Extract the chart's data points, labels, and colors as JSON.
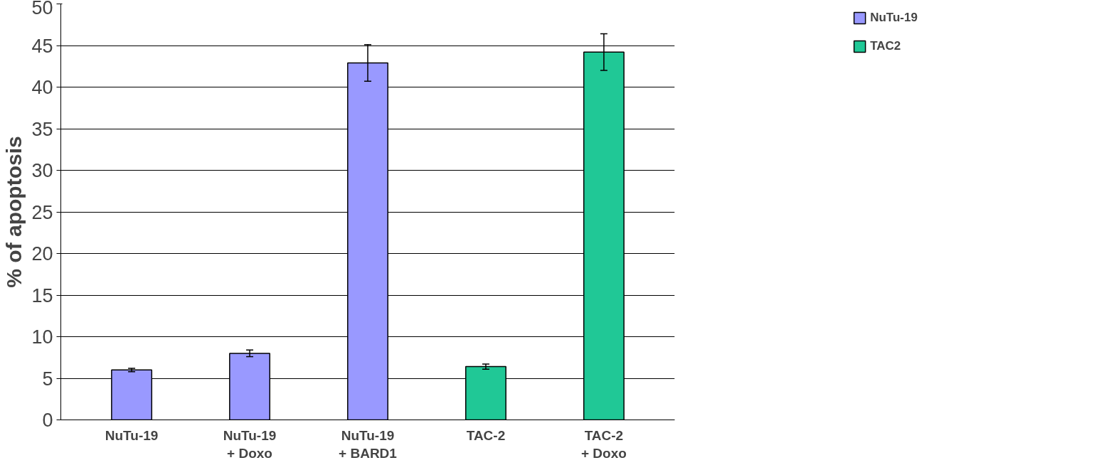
{
  "chart_data": {
    "type": "bar",
    "ylabel": "% of apoptosis",
    "categories": [
      "NuTu-19",
      "NuTu-19\n+ Doxo",
      "NuTu-19\n+ BARD1",
      "TAC-2",
      "TAC-2\n+ Doxo"
    ],
    "series": [
      {
        "name": "NuTu-19",
        "color": "#9999ff",
        "values": [
          6.0,
          8.0,
          42.9,
          null,
          null
        ],
        "errors": [
          0.2,
          0.4,
          2.2,
          null,
          null
        ]
      },
      {
        "name": "TAC2",
        "color": "#20c896",
        "values": [
          null,
          null,
          null,
          6.4,
          44.2
        ],
        "errors": [
          null,
          null,
          null,
          0.3,
          2.2
        ]
      }
    ],
    "ylim": [
      0,
      50
    ],
    "yticks": [
      0,
      5,
      10,
      15,
      20,
      25,
      30,
      35,
      40,
      45,
      50
    ],
    "grid": "y",
    "legend": "right"
  }
}
